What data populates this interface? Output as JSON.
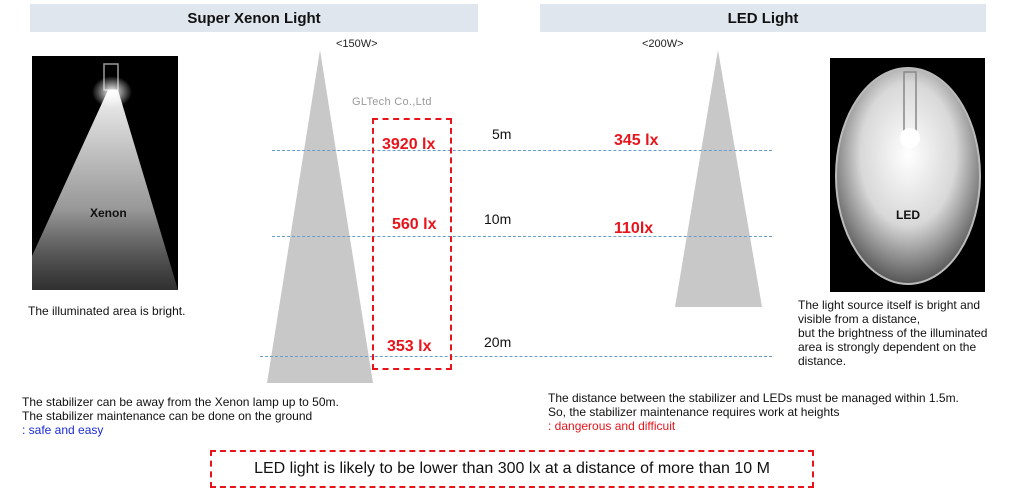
{
  "headers": {
    "xenon": "Super Xenon Light",
    "led": "LED Light"
  },
  "power": {
    "xenon": "<150W>",
    "led": "<200W>"
  },
  "watermark": "GLTech Co.,Ltd",
  "photo_labels": {
    "xenon": "Xenon",
    "led": "LED"
  },
  "distances": [
    "5m",
    "10m",
    "20m"
  ],
  "xenon_lux": [
    "3920 lx",
    "560 lx",
    "353 lx"
  ],
  "led_lux": [
    "345 lx",
    "110lx"
  ],
  "xenon_area_text": "The illuminated area is bright.",
  "led_area_text": [
    "The light source itself is bright and",
    "visible from a distance,",
    "but the brightness of the illuminated",
    "area is strongly dependent on the",
    "distance."
  ],
  "xenon_maintenance": {
    "line1": "The stabilizer can be away from the Xenon lamp up to 50m.",
    "line2": "The stabilizer maintenance can be done on the ground",
    "verdict": ": safe and easy"
  },
  "led_maintenance": {
    "line1": "The distance between the stabilizer and LEDs must be managed within 1.5m.",
    "line2": "So, the stabilizer maintenance requires work at heights",
    "verdict": ": dangerous and difficuit"
  },
  "summary": "LED light is likely to be lower than  300 lx at a distance of more than  10 M",
  "colors": {
    "accent_red": "#e8141c",
    "verdict_blue": "#1a2bd6",
    "header_bg": "#dfe6ee",
    "dash_line": "#6a9cc9"
  }
}
